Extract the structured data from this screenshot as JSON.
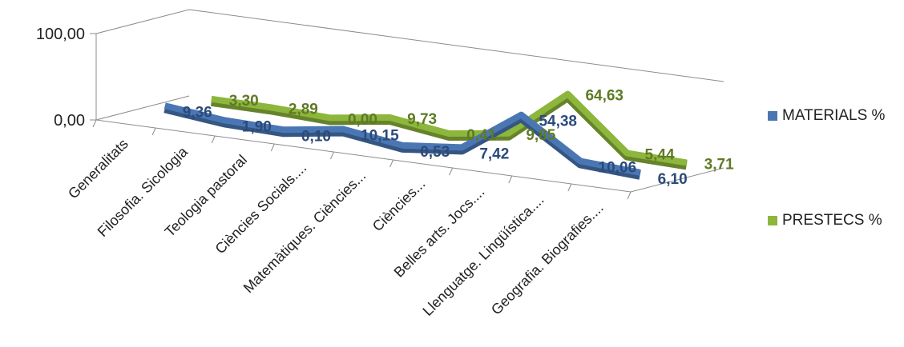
{
  "chart_data": {
    "type": "line",
    "categories": [
      "Generalitats",
      "Filosofia. Sicologia",
      "Teologia pastoral",
      "Ciències Socials....",
      "Matemàtiques. Ciències...",
      "Ciències...",
      "Belles arts. Jocs....",
      "Llenguatge. Lingüística....",
      "Geografia. Biografies...."
    ],
    "series": [
      {
        "name": "MATERIALS %",
        "color": "#4a77b4",
        "values": [
          9.36,
          1.9,
          0.1,
          10.15,
          0.53,
          7.42,
          54.38,
          10.06,
          6.1
        ],
        "labels": [
          "9,36",
          "1,90",
          "0,10",
          "10,15",
          "0,53",
          "7,42",
          "54,38",
          "10,06",
          "6,10"
        ]
      },
      {
        "name": "PRESTECS %",
        "color": "#8db63c",
        "values": [
          3.3,
          2.89,
          0.0,
          9.73,
          0.41,
          9.85,
          64.63,
          5.44,
          3.71
        ],
        "labels": [
          "3,30",
          "2,89",
          "0,00",
          "9,73",
          "0,41",
          "9,85",
          "64,63",
          "5,44",
          "3,71"
        ]
      }
    ],
    "y_ticks": [
      "0,00",
      "100,00"
    ],
    "ylim": [
      0,
      100
    ],
    "legend_position": "right",
    "grid": false
  }
}
